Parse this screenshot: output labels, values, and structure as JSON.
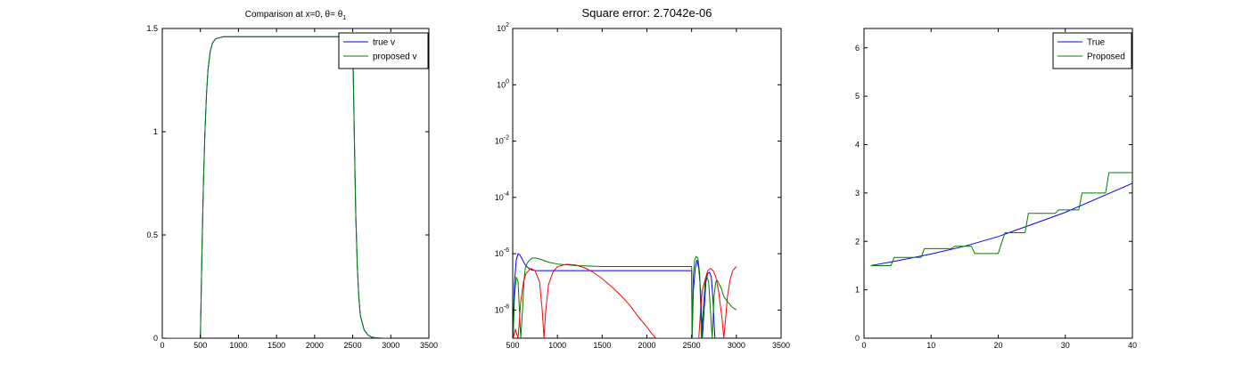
{
  "chart_data": [
    {
      "type": "line",
      "title": "Comparison at x=0, θ= θ",
      "title_subscript": "1",
      "xlabel": "",
      "ylabel": "",
      "xlim": [
        0,
        3500
      ],
      "ylim": [
        0,
        1.5
      ],
      "xticks": [
        "0",
        "500",
        "1000",
        "1500",
        "2000",
        "2500",
        "3000",
        "3500"
      ],
      "yticks": [
        "0",
        "0.5",
        "1",
        "1.5"
      ],
      "grid": false,
      "legend": "top-right",
      "series": [
        {
          "name": "true v",
          "color": "#0000ff",
          "x": [
            0,
            480,
            500,
            520,
            540,
            560,
            580,
            600,
            630,
            660,
            700,
            750,
            800,
            900,
            1000,
            1500,
            2000,
            2400,
            2450,
            2480,
            2500,
            2520,
            2540,
            2560,
            2580,
            2600,
            2650,
            2700,
            2750,
            2800,
            2900,
            3000
          ],
          "y": [
            0,
            0,
            0,
            0.4,
            0.75,
            1.0,
            1.18,
            1.3,
            1.39,
            1.43,
            1.45,
            1.455,
            1.46,
            1.46,
            1.46,
            1.46,
            1.46,
            1.46,
            1.46,
            1.46,
            1.44,
            1.0,
            0.6,
            0.35,
            0.2,
            0.11,
            0.04,
            0.015,
            0.005,
            0.002,
            0.0,
            0.0
          ]
        },
        {
          "name": "proposed v",
          "color": "#007f00",
          "x": [
            0,
            480,
            500,
            520,
            540,
            560,
            580,
            600,
            630,
            660,
            700,
            750,
            800,
            900,
            1000,
            1500,
            2000,
            2400,
            2450,
            2480,
            2500,
            2520,
            2540,
            2560,
            2580,
            2600,
            2650,
            2700,
            2750,
            2800,
            2900,
            3000
          ],
          "y": [
            0,
            0,
            0,
            0.4,
            0.75,
            1.0,
            1.18,
            1.3,
            1.39,
            1.43,
            1.45,
            1.455,
            1.46,
            1.46,
            1.46,
            1.46,
            1.46,
            1.46,
            1.46,
            1.46,
            1.44,
            1.0,
            0.6,
            0.35,
            0.2,
            0.11,
            0.04,
            0.015,
            0.005,
            0.002,
            0.0,
            0.0
          ]
        }
      ]
    },
    {
      "type": "line",
      "title": "Square error: 2.7042e-06",
      "xlabel": "",
      "ylabel": "",
      "xlim": [
        500,
        3500
      ],
      "ylim": [
        1e-09,
        100
      ],
      "yscale": "log",
      "xticks": [
        "500",
        "1000",
        "1500",
        "2000",
        "2500",
        "3000",
        "3500"
      ],
      "yticks": [
        {
          "base": "10",
          "exp": "2",
          "value": 100
        },
        {
          "base": "10",
          "exp": "0",
          "value": 1
        },
        {
          "base": "10",
          "exp": "-2",
          "value": 0.01
        },
        {
          "base": "10",
          "exp": "-4",
          "value": 0.0001
        },
        {
          "base": "10",
          "exp": "-6",
          "value": 1e-06
        },
        {
          "base": "10",
          "exp": "-8",
          "value": 1e-08
        }
      ],
      "grid": false,
      "legend": "none",
      "series": [
        {
          "color": "#0000ff",
          "x": [
            505,
            510,
            520,
            540,
            560,
            580,
            600,
            640,
            680,
            720,
            760,
            800,
            1000,
            1500,
            2000,
            2500,
            2505,
            2520,
            2540,
            2560,
            2580,
            2600,
            2620,
            2640,
            2660,
            2680,
            2700,
            2720,
            2740,
            2760
          ],
          "y": [
            1e-09,
            1e-08,
            1e-07,
            6e-07,
            1e-06,
            9e-07,
            7e-07,
            4e-07,
            3e-07,
            2.6e-07,
            2.5e-07,
            2.5e-07,
            2.5e-07,
            2.5e-07,
            2.5e-07,
            2.5e-07,
            1e-09,
            5e-08,
            3e-07,
            6e-07,
            3e-07,
            5e-08,
            1e-09,
            1e-08,
            1e-07,
            2e-07,
            2.2e-07,
            1.5e-07,
            2e-08,
            1e-09
          ]
        },
        {
          "color": "#007f00",
          "x": [
            505,
            520,
            540,
            560,
            575,
            590,
            610,
            625,
            640,
            660,
            680,
            700,
            720,
            760,
            800,
            900,
            1000,
            1200,
            1500,
            2000,
            2500,
            2505,
            2520,
            2535,
            2550,
            2570,
            2590,
            2610,
            2630,
            2650,
            2670,
            2690,
            2710,
            2730,
            2750,
            2770,
            2790,
            2810,
            2830,
            2860,
            2900,
            2950,
            3000
          ],
          "y": [
            1e-09,
            3e-08,
            1.5e-07,
            1e-07,
            1e-08,
            1e-09,
            1e-08,
            1e-07,
            3e-07,
            4.5e-07,
            5.5e-07,
            6.5e-07,
            7e-07,
            7e-07,
            6.5e-07,
            5e-07,
            4.3e-07,
            3.8e-07,
            3.5e-07,
            3.5e-07,
            3.5e-07,
            1e-09,
            2e-07,
            6e-07,
            8e-07,
            7e-07,
            2e-07,
            1e-09,
            1e-08,
            1e-07,
            1.6e-07,
            1e-07,
            1e-08,
            1e-09,
            3e-08,
            1e-07,
            1.1e-07,
            8e-08,
            6e-08,
            3e-08,
            2e-08,
            1.3e-08,
            1e-08
          ]
        },
        {
          "color": "#ff0000",
          "x": [
            505,
            530,
            560,
            590,
            620,
            650,
            700,
            750,
            800,
            830,
            850,
            870,
            900,
            950,
            1000,
            1100,
            1200,
            1300,
            1400,
            1500,
            1600,
            1700,
            1800,
            1900,
            2000,
            2050,
            2100,
            2580,
            2600,
            2620,
            2650,
            2680,
            2710,
            2740,
            2770,
            2800,
            2840,
            2860,
            2880,
            2900,
            2930,
            2960,
            3000
          ],
          "y": [
            1e-09,
            2e-09,
            1e-09,
            2e-08,
            1e-07,
            2e-07,
            3e-07,
            2.5e-07,
            1e-07,
            1e-08,
            1e-09,
            1e-08,
            8e-08,
            2.2e-07,
            3.5e-07,
            4.2e-07,
            4e-07,
            3.2e-07,
            2.2e-07,
            1.3e-07,
            7e-08,
            3.5e-08,
            1.6e-08,
            6e-09,
            2.5e-09,
            1.5e-09,
            1e-09,
            1e-09,
            1e-08,
            5e-08,
            1.2e-07,
            2.5e-07,
            3e-07,
            2.5e-07,
            1.5e-07,
            5e-08,
            5e-09,
            1e-09,
            5e-09,
            3e-08,
            1.2e-07,
            2.5e-07,
            3.5e-07
          ]
        }
      ]
    },
    {
      "type": "line",
      "title": "",
      "xlabel": "",
      "ylabel": "",
      "xlim": [
        0,
        40
      ],
      "ylim": [
        0,
        6.4
      ],
      "xticks": [
        "0",
        "10",
        "20",
        "30",
        "40"
      ],
      "yticks": [
        "0",
        "1",
        "2",
        "3",
        "4",
        "5",
        "6"
      ],
      "grid": false,
      "legend": "top-right",
      "series": [
        {
          "name": "True",
          "color": "#0000ff",
          "x": [
            1,
            5,
            10,
            15,
            20,
            25,
            30,
            35,
            40
          ],
          "y": [
            1.5,
            1.6,
            1.74,
            1.9,
            2.1,
            2.35,
            2.6,
            2.9,
            3.2
          ]
        },
        {
          "name": "Proposed",
          "color": "#007f00",
          "x": [
            1,
            4,
            4.5,
            8.5,
            9,
            13,
            13.5,
            16,
            16.5,
            20,
            21,
            24,
            24.5,
            28.5,
            29,
            32,
            32.5,
            36,
            36.5,
            40
          ],
          "y": [
            1.5,
            1.5,
            1.67,
            1.67,
            1.85,
            1.85,
            1.9,
            1.9,
            1.75,
            1.75,
            2.18,
            2.18,
            2.58,
            2.58,
            2.65,
            2.65,
            3.0,
            3.0,
            3.42,
            3.42
          ]
        }
      ]
    }
  ]
}
